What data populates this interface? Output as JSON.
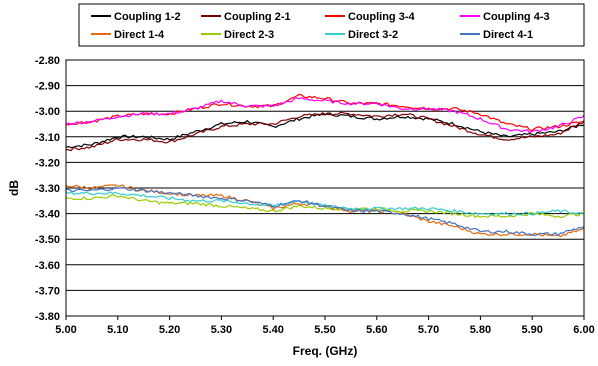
{
  "chart_data": {
    "type": "line",
    "xlabel": "Freq. (GHz)",
    "ylabel": "dB",
    "xlim": [
      5.0,
      6.0
    ],
    "ylim": [
      -3.8,
      -2.8
    ],
    "x_ticks": [
      "5.00",
      "5.10",
      "5.20",
      "5.30",
      "5.40",
      "5.50",
      "5.60",
      "5.70",
      "5.80",
      "5.90",
      "6.00"
    ],
    "y_ticks": [
      "-2.80",
      "-2.90",
      "-3.00",
      "-3.10",
      "-3.20",
      "-3.30",
      "-3.40",
      "-3.50",
      "-3.60",
      "-3.70",
      "-3.80"
    ],
    "grid": "horizontal",
    "legend_position": "top",
    "x": [
      5.0,
      5.05,
      5.1,
      5.15,
      5.2,
      5.25,
      5.3,
      5.35,
      5.4,
      5.45,
      5.5,
      5.55,
      5.6,
      5.65,
      5.7,
      5.75,
      5.8,
      5.85,
      5.9,
      5.95,
      6.0
    ],
    "series": [
      {
        "name": "Coupling 1-2",
        "color": "#000000",
        "values": [
          -3.14,
          -3.13,
          -3.1,
          -3.1,
          -3.11,
          -3.08,
          -3.05,
          -3.04,
          -3.06,
          -3.03,
          -3.01,
          -3.02,
          -3.03,
          -3.02,
          -3.03,
          -3.05,
          -3.08,
          -3.1,
          -3.09,
          -3.08,
          -3.05
        ]
      },
      {
        "name": "Coupling 2-1",
        "color": "#800000",
        "values": [
          -3.15,
          -3.14,
          -3.11,
          -3.11,
          -3.12,
          -3.09,
          -3.06,
          -3.05,
          -3.05,
          -3.02,
          -3.01,
          -3.01,
          -3.02,
          -3.01,
          -3.03,
          -3.06,
          -3.09,
          -3.11,
          -3.1,
          -3.09,
          -3.04
        ]
      },
      {
        "name": "Coupling 3-4",
        "color": "#ff0000",
        "values": [
          -3.05,
          -3.04,
          -3.02,
          -3.01,
          -3.01,
          -2.99,
          -2.97,
          -2.98,
          -2.98,
          -2.94,
          -2.95,
          -2.97,
          -2.97,
          -2.98,
          -2.99,
          -2.99,
          -3.01,
          -3.05,
          -3.07,
          -3.06,
          -3.04
        ]
      },
      {
        "name": "Coupling 4-3",
        "color": "#ff00ff",
        "values": [
          -3.05,
          -3.04,
          -3.02,
          -3.01,
          -3.01,
          -2.99,
          -2.96,
          -2.98,
          -2.98,
          -2.95,
          -2.96,
          -2.97,
          -2.97,
          -2.99,
          -2.99,
          -3.0,
          -3.03,
          -3.07,
          -3.08,
          -3.06,
          -3.02
        ]
      },
      {
        "name": "Direct 1-4",
        "color": "#e46c0a",
        "values": [
          -3.29,
          -3.3,
          -3.29,
          -3.31,
          -3.32,
          -3.33,
          -3.33,
          -3.35,
          -3.38,
          -3.36,
          -3.37,
          -3.39,
          -3.39,
          -3.4,
          -3.43,
          -3.45,
          -3.48,
          -3.48,
          -3.48,
          -3.49,
          -3.46
        ]
      },
      {
        "name": "Direct 2-3",
        "color": "#99cc00",
        "values": [
          -3.34,
          -3.34,
          -3.33,
          -3.35,
          -3.36,
          -3.36,
          -3.37,
          -3.38,
          -3.39,
          -3.37,
          -3.38,
          -3.38,
          -3.38,
          -3.39,
          -3.39,
          -3.4,
          -3.41,
          -3.41,
          -3.4,
          -3.41,
          -3.4
        ]
      },
      {
        "name": "Direct 3-2",
        "color": "#33cccc",
        "values": [
          -3.32,
          -3.32,
          -3.32,
          -3.33,
          -3.34,
          -3.35,
          -3.35,
          -3.36,
          -3.37,
          -3.35,
          -3.37,
          -3.38,
          -3.38,
          -3.38,
          -3.38,
          -3.39,
          -3.4,
          -3.4,
          -3.4,
          -3.39,
          -3.4
        ]
      },
      {
        "name": "Direct 4-1",
        "color": "#4472c4",
        "values": [
          -3.31,
          -3.31,
          -3.3,
          -3.31,
          -3.32,
          -3.33,
          -3.34,
          -3.35,
          -3.37,
          -3.35,
          -3.37,
          -3.39,
          -3.39,
          -3.4,
          -3.42,
          -3.44,
          -3.47,
          -3.47,
          -3.48,
          -3.48,
          -3.45
        ]
      }
    ]
  }
}
